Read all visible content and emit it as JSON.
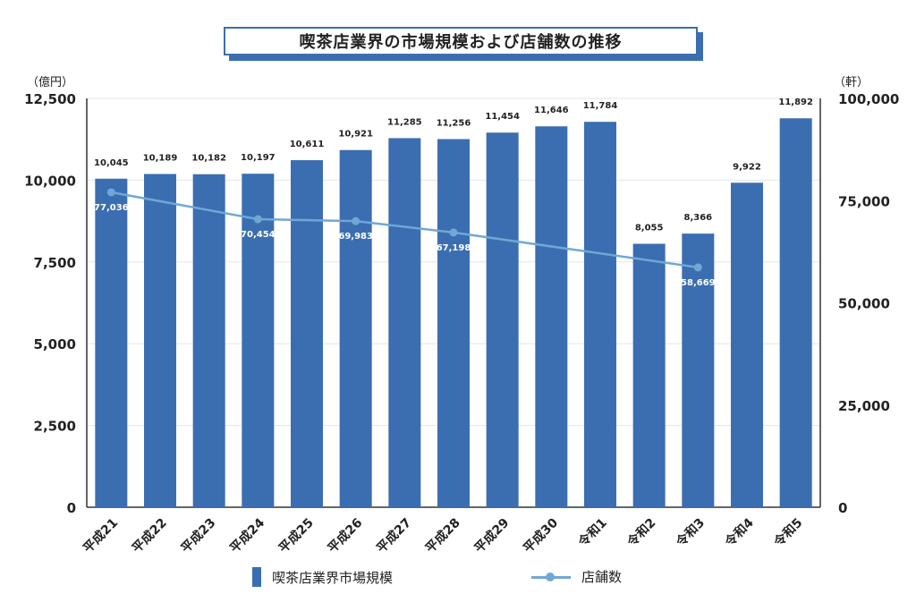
{
  "chart_data": {
    "type": "bar",
    "title": "喫茶店業界の市場規模および店舗数の推移",
    "left_unit": "（億円）",
    "right_unit": "（軒）",
    "categories": [
      "平成21",
      "平成22",
      "平成23",
      "平成24",
      "平成25",
      "平成26",
      "平成27",
      "平成28",
      "平成29",
      "平成30",
      "令和1",
      "令和2",
      "令和3",
      "令和4",
      "令和5"
    ],
    "series": [
      {
        "name": "喫茶店業界市場規模",
        "type": "bar",
        "axis": "left",
        "color": "#3b6eb0",
        "values": [
          10045,
          10189,
          10182,
          10197,
          10611,
          10921,
          11285,
          11256,
          11454,
          11646,
          11784,
          8055,
          8366,
          9922,
          11892
        ],
        "labels": [
          "10,045",
          "10,189",
          "10,182",
          "10,197",
          "10,611",
          "10,921",
          "11,285",
          "11,256",
          "11,454",
          "11,646",
          "11,784",
          "8,055",
          "8,366",
          "9,922",
          "11,892"
        ]
      },
      {
        "name": "店舗数",
        "type": "line",
        "axis": "right",
        "color": "#6fa8d6",
        "values": [
          77036,
          null,
          null,
          70454,
          null,
          69983,
          null,
          67198,
          null,
          null,
          null,
          null,
          58669,
          null,
          null
        ],
        "labels": [
          "77,036",
          "",
          "",
          "70,454",
          "",
          "69,983",
          "",
          "67,198",
          "",
          "",
          "",
          "",
          "58,669",
          "",
          ""
        ]
      }
    ],
    "ylim_left": [
      0,
      12500
    ],
    "ylim_right": [
      0,
      100000
    ],
    "yticks_left": [
      "0",
      "2,500",
      "5,000",
      "7,500",
      "10,000",
      "12,500"
    ],
    "yticks_right": [
      "0",
      "25,000",
      "50,000",
      "75,000",
      "100,000"
    ],
    "grid": true,
    "legend_position": "bottom"
  }
}
